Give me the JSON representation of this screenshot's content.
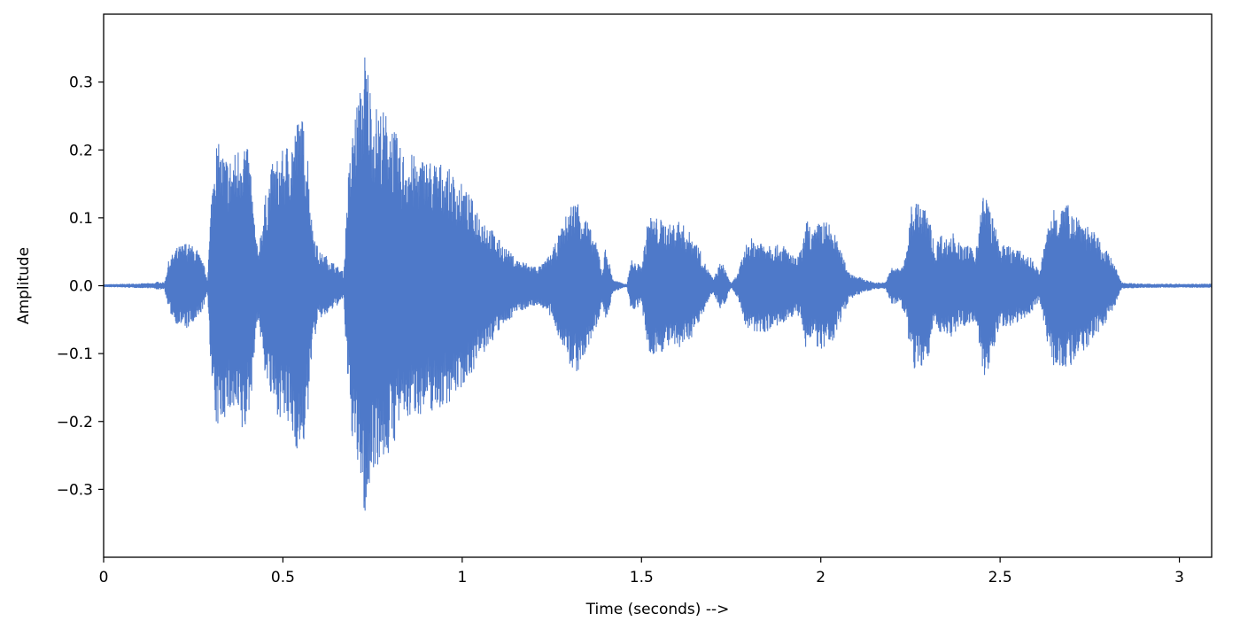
{
  "chart_data": {
    "type": "line",
    "title": "",
    "xlabel": "Time (seconds) -->",
    "ylabel": "Amplitude",
    "xlim": [
      0,
      3.09
    ],
    "ylim": [
      -0.4,
      0.4
    ],
    "grid": false,
    "line_color": "#4e79c9",
    "x_ticks": [
      0,
      0.5,
      1,
      1.5,
      2,
      2.5,
      3
    ],
    "x_tick_labels": [
      "0",
      "0.5",
      "1",
      "1.5",
      "2",
      "2.5",
      "3"
    ],
    "y_ticks": [
      -0.3,
      -0.2,
      -0.1,
      0.0,
      0.1,
      0.2,
      0.3
    ],
    "y_tick_labels": [
      "−0.3",
      "−0.2",
      "−0.1",
      "0.0",
      "0.1",
      "0.2",
      "0.3"
    ],
    "series": [
      {
        "values_description_free": true,
        "envelope_time": [
          0,
          0.14,
          0.15,
          0.17,
          0.18,
          0.2,
          0.23,
          0.26,
          0.28,
          0.29,
          0.3,
          0.31,
          0.33,
          0.35,
          0.37,
          0.39,
          0.41,
          0.42,
          0.43,
          0.45,
          0.47,
          0.5,
          0.53,
          0.55,
          0.57,
          0.58,
          0.6,
          0.62,
          0.65,
          0.67,
          0.68,
          0.7,
          0.72,
          0.73,
          0.75,
          0.78,
          0.8,
          0.83,
          0.85,
          0.87,
          0.9,
          0.95,
          1.0,
          1.05,
          1.1,
          1.15,
          1.2,
          1.22,
          1.25,
          1.28,
          1.3,
          1.32,
          1.34,
          1.36,
          1.38,
          1.39,
          1.4,
          1.42,
          1.45,
          1.46,
          1.47,
          1.48,
          1.5,
          1.52,
          1.55,
          1.58,
          1.6,
          1.65,
          1.68,
          1.7,
          1.72,
          1.73,
          1.75,
          1.77,
          1.79,
          1.8,
          1.82,
          1.85,
          1.88,
          1.9,
          1.93,
          1.95,
          1.96,
          1.98,
          2.0,
          2.03,
          2.05,
          2.08,
          2.12,
          2.15,
          2.18,
          2.2,
          2.22,
          2.24,
          2.25,
          2.26,
          2.28,
          2.3,
          2.32,
          2.33,
          2.35,
          2.37,
          2.39,
          2.41,
          2.43,
          2.45,
          2.46,
          2.48,
          2.5,
          2.53,
          2.56,
          2.59,
          2.61,
          2.63,
          2.65,
          2.68,
          2.7,
          2.73,
          2.76,
          2.79,
          2.82,
          2.84,
          2.86,
          2.9,
          3.0,
          3.09
        ],
        "envelope_upper": [
          0.002,
          0.004,
          0.006,
          0.005,
          0.035,
          0.055,
          0.065,
          0.055,
          0.03,
          0.01,
          0.13,
          0.22,
          0.2,
          0.19,
          0.2,
          0.23,
          0.18,
          0.1,
          0.05,
          0.13,
          0.18,
          0.2,
          0.23,
          0.26,
          0.2,
          0.1,
          0.05,
          0.045,
          0.03,
          0.02,
          0.15,
          0.26,
          0.3,
          0.36,
          0.27,
          0.26,
          0.25,
          0.2,
          0.2,
          0.19,
          0.19,
          0.18,
          0.15,
          0.11,
          0.07,
          0.04,
          0.03,
          0.03,
          0.05,
          0.09,
          0.12,
          0.13,
          0.11,
          0.08,
          0.055,
          0.02,
          0.06,
          0.01,
          0.003,
          0.003,
          0.04,
          0.035,
          0.03,
          0.105,
          0.1,
          0.09,
          0.1,
          0.07,
          0.03,
          0.01,
          0.035,
          0.03,
          0.003,
          0.02,
          0.06,
          0.07,
          0.07,
          0.068,
          0.06,
          0.06,
          0.04,
          0.06,
          0.1,
          0.08,
          0.1,
          0.09,
          0.06,
          0.02,
          0.01,
          0.005,
          0.005,
          0.03,
          0.025,
          0.05,
          0.12,
          0.13,
          0.12,
          0.11,
          0.05,
          0.08,
          0.07,
          0.08,
          0.06,
          0.06,
          0.05,
          0.13,
          0.14,
          0.1,
          0.06,
          0.06,
          0.05,
          0.04,
          0.02,
          0.08,
          0.12,
          0.12,
          0.12,
          0.1,
          0.08,
          0.06,
          0.03,
          0.005,
          0.004,
          0.003,
          0.003,
          0.003
        ]
      }
    ]
  }
}
